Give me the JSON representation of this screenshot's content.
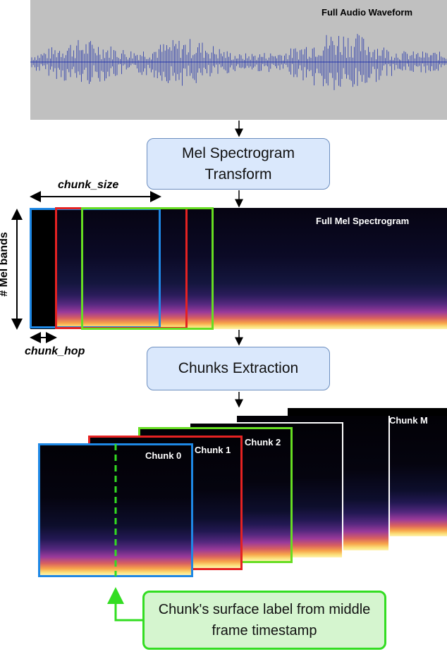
{
  "waveform": {
    "title": "Full Audio Waveform"
  },
  "steps": {
    "mel_transform": "Mel Spectrogram\nTransform",
    "chunks_extraction": "Chunks Extraction"
  },
  "spectrogram": {
    "title": "Full Mel Spectrogram",
    "y_label": "# Mel bands",
    "chunk_size_label": "chunk_size",
    "chunk_hop_label": "chunk_hop"
  },
  "chunks": [
    {
      "label": "Chunk 0",
      "color": "#1e88e5"
    },
    {
      "label": "Chunk 1",
      "color": "#e52222"
    },
    {
      "label": "Chunk 2",
      "color": "#66dd22"
    },
    {
      "label": "Chunk M",
      "color": "#ffffff"
    }
  ],
  "callout": {
    "text": "Chunk's surface label from middle frame timestamp"
  },
  "colors": {
    "blue": "#1e88e5",
    "red": "#e52222",
    "green": "#66dd22",
    "box_fill": "#dae8fc",
    "box_border": "#6c8ebf",
    "callout_fill": "#d5f5cf",
    "callout_border": "#33dd22",
    "waveform_bg": "#c0c0c0",
    "waveform_line": "#2233aa"
  }
}
